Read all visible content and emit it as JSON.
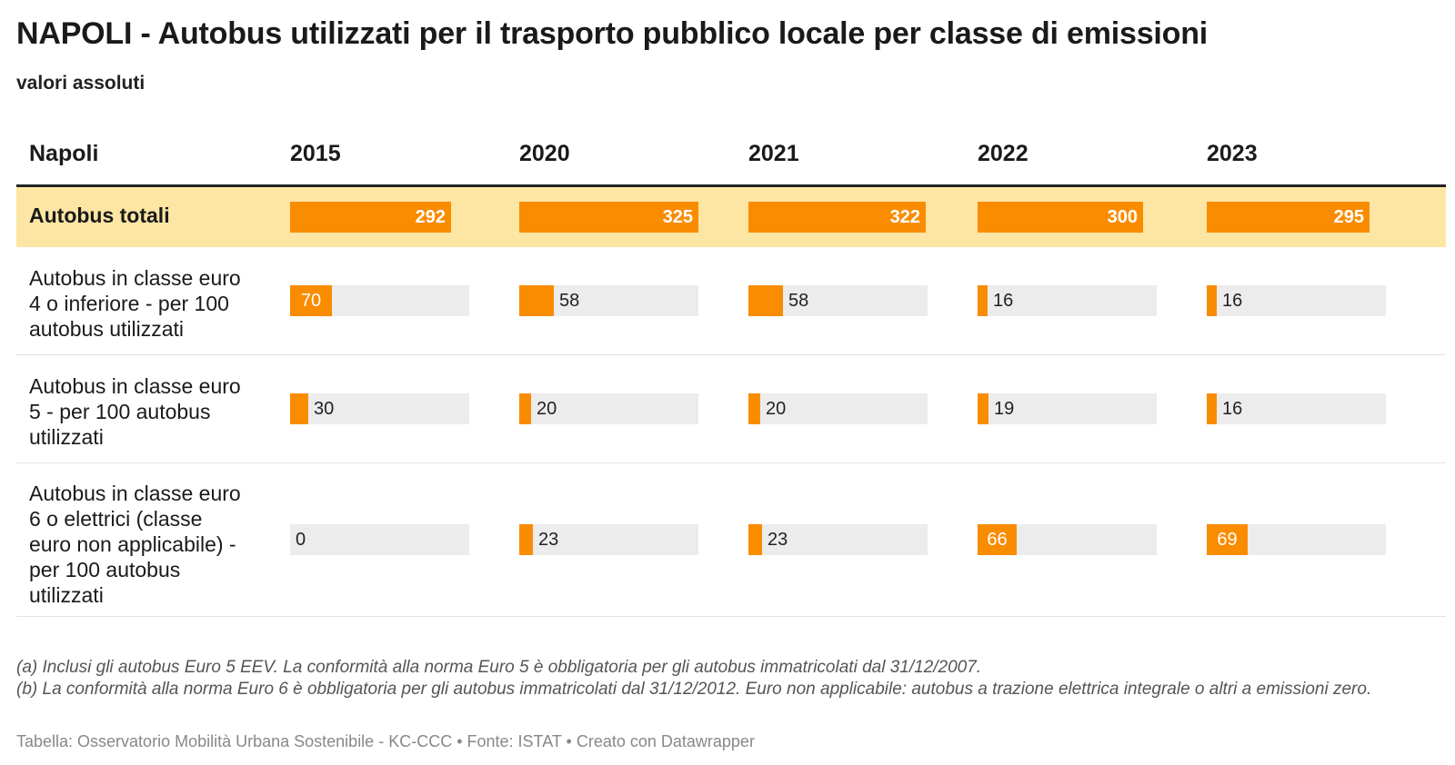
{
  "title": "NAPOLI - Autobus utilizzati per il trasporto pubblico locale per classe di emissioni",
  "subtitle": "valori assoluti",
  "header": {
    "label": "Napoli",
    "years": [
      "2015",
      "2020",
      "2021",
      "2022",
      "2023"
    ]
  },
  "notes": [
    "(a) Inclusi gli autobus Euro 5 EEV. La conformità alla norma Euro 5 è obbligatoria per gli autobus immatricolati dal 31/12/2007.",
    "(b) La conformità alla norma Euro 6 è obbligatoria per gli autobus immatricolati dal 31/12/2012. Euro non applicabile: autobus a trazione elettrica integrale o altri a emissioni zero."
  ],
  "footer": "Tabella: Osservatorio Mobilità Urbana Sostenibile - KC-CCC • Fonte: ISTAT • Creato con Datawrapper",
  "colors": {
    "bar": "#fa8c00",
    "bar_track": "#ececec",
    "highlight_row": "#fde5a3"
  },
  "chart_data": {
    "type": "table",
    "title": "NAPOLI - Autobus utilizzati per il trasporto pubblico locale per classe di emissioni",
    "subtitle": "valori assoluti",
    "columns": [
      "2015",
      "2020",
      "2021",
      "2022",
      "2023"
    ],
    "rows": [
      {
        "label": "Autobus totali",
        "values": [
          292,
          325,
          322,
          300,
          295
        ],
        "max": 325,
        "highlight": true
      },
      {
        "label": "Autobus in classe euro 4 o inferiore - per 100 autobus utilizzati",
        "values": [
          70,
          58,
          58,
          16,
          16
        ],
        "max": 300,
        "highlight": false
      },
      {
        "label": "Autobus in classe euro 5 - per 100 autobus utilizzati",
        "values": [
          30,
          20,
          20,
          19,
          16
        ],
        "max": 300,
        "highlight": false
      },
      {
        "label": "Autobus in classe euro 6 o elettrici (classe euro non applicabile) - per 100 autobus utilizzati",
        "values": [
          0,
          23,
          23,
          66,
          69
        ],
        "max": 300,
        "highlight": false
      }
    ]
  }
}
